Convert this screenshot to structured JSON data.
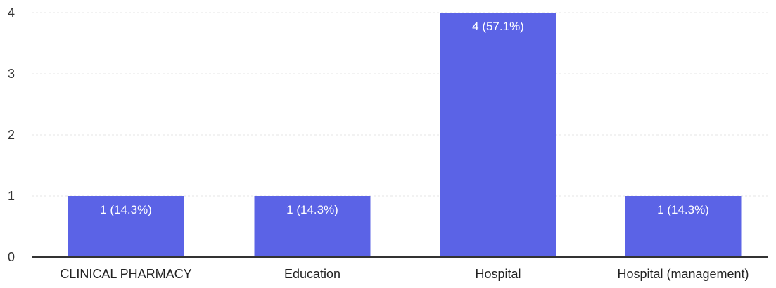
{
  "chart_data": {
    "type": "bar",
    "categories": [
      "CLINICAL PHARMACY",
      "Education",
      "Hospital",
      "Hospital (management)"
    ],
    "values": [
      1,
      1,
      4,
      1
    ],
    "data_labels": [
      "1 (14.3%)",
      "1 (14.3%)",
      "4 (57.1%)",
      "1 (14.3%)"
    ],
    "yticks": [
      "0",
      "1",
      "2",
      "3",
      "4"
    ],
    "ylim": [
      0,
      4
    ],
    "grid": true,
    "legend": "none",
    "colors": {
      "bar": "#5b63e6"
    }
  }
}
